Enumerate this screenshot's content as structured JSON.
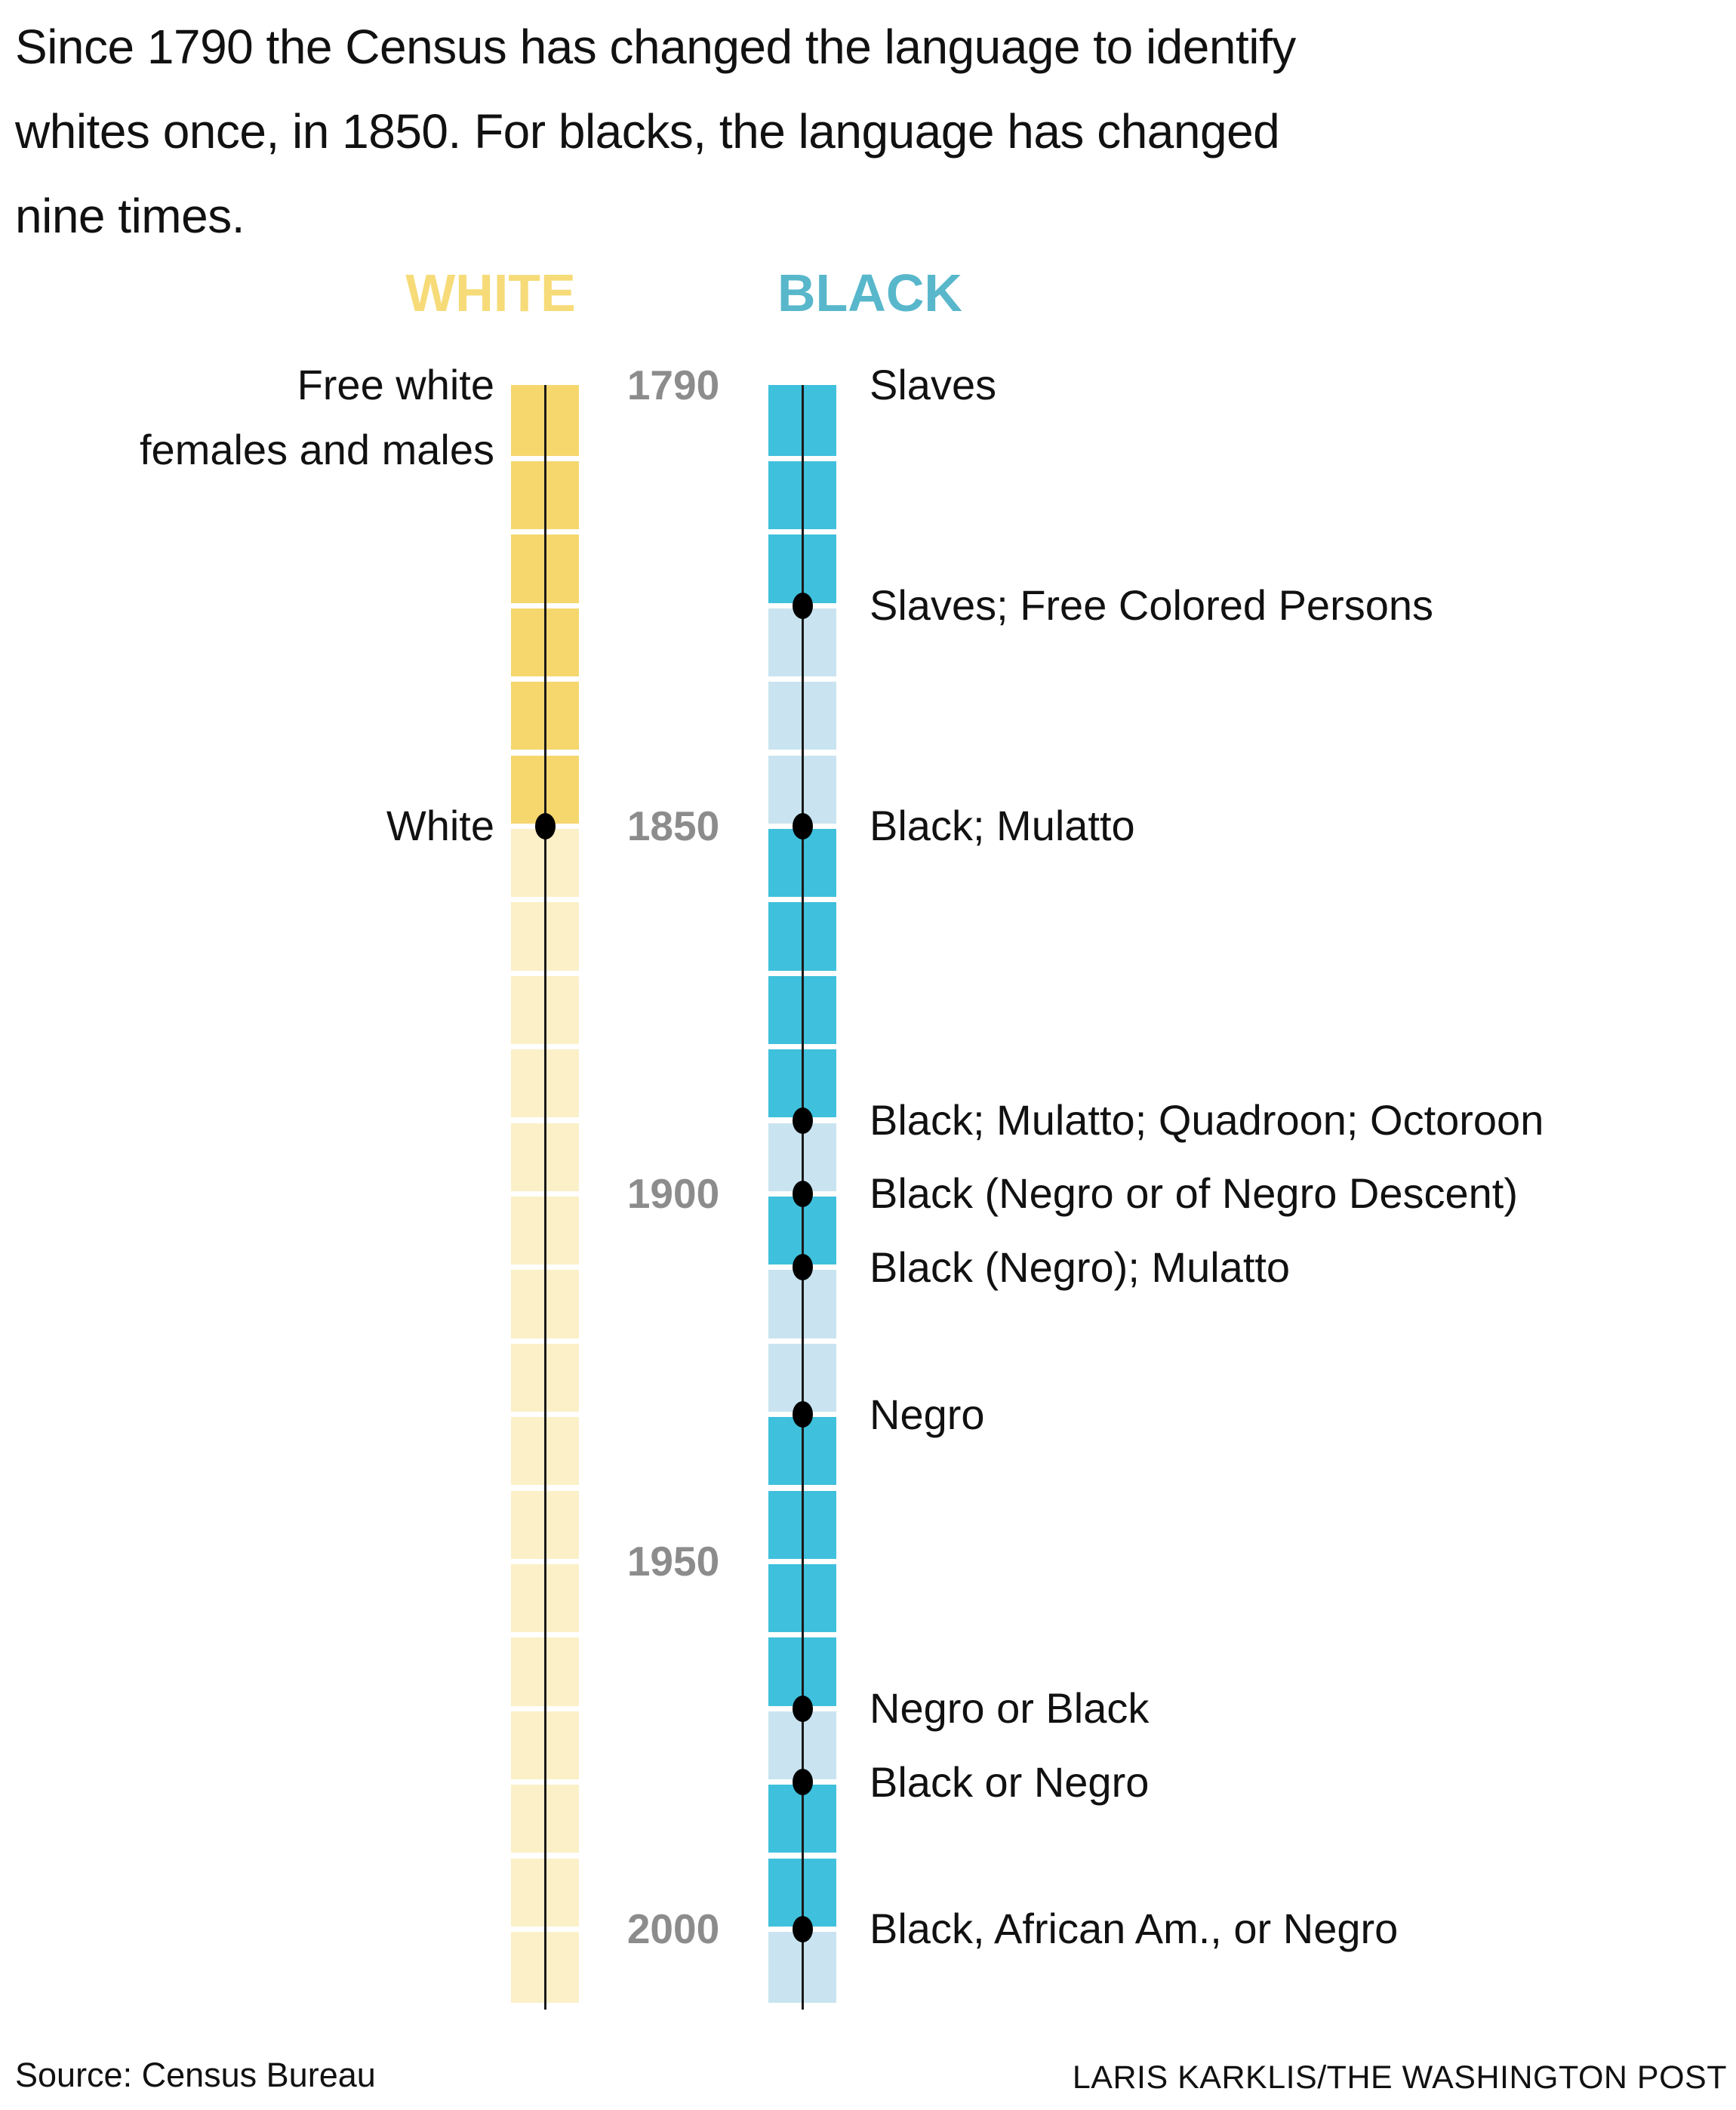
{
  "title": {
    "lines": [
      "Since 1790 the Census has changed the language to identify",
      "whites once, in 1850. For blacks, the language has changed",
      "nine times."
    ]
  },
  "footer": {
    "source": "Source: Census Bureau",
    "credit": "LARIS KARKLIS/THE WASHINGTON POST"
  },
  "colors": {
    "white_bar_dark": "#f5d76e",
    "white_bar_light": "#fbf0c7",
    "black_bar_dark": "#3fc0dc",
    "black_bar_light": "#c9e4f0",
    "white_header": "#f6db78",
    "black_header": "#58b7cb",
    "tick_text": "#8c8c8c",
    "marker": "#000000",
    "axis_line": "#1a1a1a",
    "text": "#111111",
    "background": "#ffffff"
  },
  "chart_data": {
    "type": "timeline",
    "title": "Census race terminology changes, whites vs. blacks",
    "axis": {
      "start_year": 1790,
      "end_year": 2010,
      "decade_step": 10,
      "tick_years": [
        1790,
        1850,
        1900,
        1950,
        2000
      ]
    },
    "legend_position": "top",
    "columns": [
      {
        "id": "white",
        "header": "WHITE",
        "label_side": "left",
        "eras": [
          {
            "start_year": 1790,
            "label": "Free white females and males",
            "label_lines": [
              "Free white",
              "females and males"
            ],
            "marker": false
          },
          {
            "start_year": 1850,
            "label": "White",
            "marker": true
          }
        ]
      },
      {
        "id": "black",
        "header": "BLACK",
        "label_side": "right",
        "eras": [
          {
            "start_year": 1790,
            "label": "Slaves",
            "marker": false
          },
          {
            "start_year": 1820,
            "label": "Slaves; Free Colored Persons",
            "marker": true
          },
          {
            "start_year": 1850,
            "label": "Black; Mulatto",
            "marker": true
          },
          {
            "start_year": 1890,
            "label": "Black; Mulatto; Quadroon; Octoroon",
            "marker": true
          },
          {
            "start_year": 1900,
            "label": "Black (Negro or of Negro Descent)",
            "marker": true
          },
          {
            "start_year": 1910,
            "label": "Black (Negro); Mulatto",
            "marker": true
          },
          {
            "start_year": 1930,
            "label": "Negro",
            "marker": true
          },
          {
            "start_year": 1970,
            "label": "Negro or Black",
            "marker": true
          },
          {
            "start_year": 1980,
            "label": "Black or Negro",
            "marker": true
          },
          {
            "start_year": 2000,
            "label": "Black, African Am., or Negro",
            "marker": true
          }
        ]
      }
    ]
  }
}
